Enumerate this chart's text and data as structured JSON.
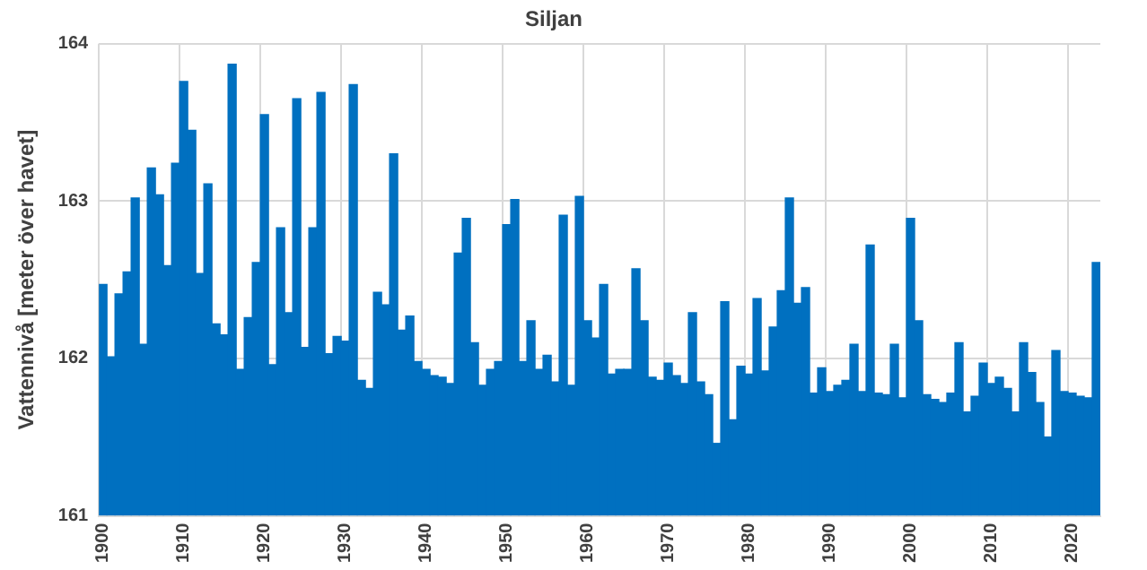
{
  "chart_data": {
    "type": "bar",
    "title": "Siljan",
    "ylabel": "Vattennivå [meter över havet]",
    "categories": [
      "1900",
      null,
      null,
      null,
      null,
      null,
      null,
      null,
      null,
      null,
      "1910",
      null,
      null,
      null,
      null,
      null,
      null,
      null,
      null,
      null,
      "1920",
      null,
      null,
      null,
      null,
      null,
      null,
      null,
      null,
      null,
      "1930",
      null,
      null,
      null,
      null,
      null,
      null,
      null,
      null,
      null,
      "1940",
      null,
      null,
      null,
      null,
      null,
      null,
      null,
      null,
      null,
      "1950",
      null,
      null,
      null,
      null,
      null,
      null,
      null,
      null,
      null,
      "1960",
      null,
      null,
      null,
      null,
      null,
      null,
      null,
      null,
      null,
      "1970",
      null,
      null,
      null,
      null,
      null,
      null,
      null,
      null,
      null,
      "1980",
      null,
      null,
      null,
      null,
      null,
      null,
      null,
      null,
      null,
      "1990",
      null,
      null,
      null,
      null,
      null,
      null,
      null,
      null,
      null,
      "2000",
      null,
      null,
      null,
      null,
      null,
      null,
      null,
      null,
      null,
      "2010",
      null,
      null,
      null,
      null,
      null,
      null,
      null,
      null,
      null,
      "2020",
      null,
      null,
      null
    ],
    "values": [
      162.47,
      162.01,
      162.41,
      162.55,
      163.02,
      162.09,
      163.21,
      163.04,
      162.59,
      163.24,
      163.76,
      163.45,
      162.54,
      163.11,
      162.22,
      162.15,
      163.87,
      161.93,
      162.26,
      162.61,
      163.55,
      161.96,
      162.83,
      162.29,
      163.65,
      162.07,
      162.83,
      163.69,
      162.03,
      162.14,
      162.11,
      163.74,
      161.86,
      161.81,
      162.42,
      162.34,
      163.3,
      162.18,
      162.27,
      161.98,
      161.93,
      161.89,
      161.88,
      161.84,
      162.67,
      162.89,
      162.1,
      161.83,
      161.93,
      161.98,
      162.85,
      163.01,
      161.98,
      162.24,
      161.93,
      162.02,
      161.85,
      162.91,
      161.83,
      163.03,
      162.24,
      162.13,
      162.47,
      161.9,
      161.93,
      161.93,
      162.57,
      162.24,
      161.88,
      161.86,
      161.97,
      161.89,
      161.84,
      162.29,
      161.85,
      161.77,
      161.46,
      162.36,
      161.61,
      161.95,
      161.9,
      162.38,
      161.92,
      162.2,
      162.43,
      163.02,
      162.35,
      162.45,
      161.78,
      161.94,
      161.79,
      161.83,
      161.86,
      162.09,
      161.79,
      162.72,
      161.78,
      161.77,
      162.09,
      161.75,
      162.89,
      162.24,
      161.77,
      161.74,
      161.72,
      161.78,
      162.1,
      161.66,
      161.76,
      161.97,
      161.84,
      161.88,
      161.81,
      161.66,
      162.1,
      161.91,
      161.72,
      161.5,
      162.05,
      161.79,
      161.78,
      161.76,
      161.75,
      162.61
    ],
    "color": "#0070c0",
    "ylim": [
      161,
      164
    ],
    "yticks": [
      161,
      162,
      163,
      164
    ],
    "grid": true
  }
}
